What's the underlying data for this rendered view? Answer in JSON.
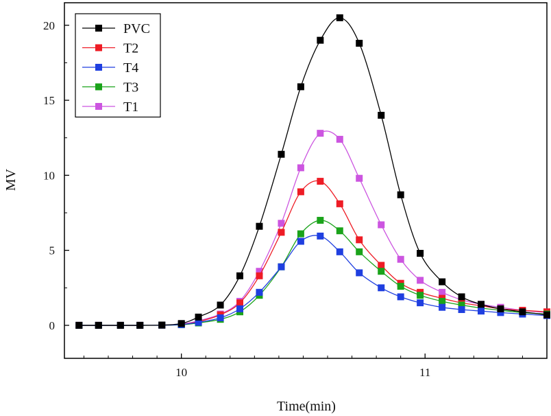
{
  "chart_data": {
    "type": "line",
    "title": "",
    "xlabel": "Time(min)",
    "ylabel": "MV",
    "xlim": [
      9.52,
      11.5
    ],
    "ylim": [
      -2.2,
      21.5
    ],
    "xticks": [
      10,
      11
    ],
    "yticks": [
      0,
      5,
      10,
      15,
      20
    ],
    "grid": false,
    "legend_position": "top-left",
    "series": [
      {
        "name": "PVC",
        "color": "#000000",
        "x": [
          9.58,
          9.66,
          9.75,
          9.83,
          9.92,
          10.0,
          10.07,
          10.16,
          10.24,
          10.32,
          10.41,
          10.49,
          10.57,
          10.65,
          10.73,
          10.82,
          10.9,
          10.98,
          11.07,
          11.15,
          11.23,
          11.31,
          11.4,
          11.5
        ],
        "y": [
          0.0,
          0.0,
          0.0,
          0.0,
          0.02,
          0.12,
          0.55,
          1.35,
          3.3,
          6.6,
          11.4,
          15.9,
          19.0,
          20.5,
          18.8,
          14.0,
          8.7,
          4.8,
          2.9,
          1.9,
          1.4,
          1.1,
          0.9,
          0.7
        ]
      },
      {
        "name": "T2",
        "color": "#ee1c25",
        "x": [
          9.58,
          9.66,
          9.75,
          9.83,
          9.92,
          10.0,
          10.07,
          10.16,
          10.24,
          10.32,
          10.41,
          10.49,
          10.57,
          10.65,
          10.73,
          10.82,
          10.9,
          10.98,
          11.07,
          11.15,
          11.23,
          11.31,
          11.4,
          11.5
        ],
        "y": [
          0.0,
          0.0,
          0.0,
          0.0,
          0.01,
          0.06,
          0.25,
          0.7,
          1.5,
          3.3,
          6.2,
          8.9,
          9.6,
          8.1,
          5.7,
          4.0,
          2.8,
          2.2,
          1.8,
          1.5,
          1.3,
          1.1,
          1.0,
          0.9
        ]
      },
      {
        "name": "T4",
        "color": "#1f3fe0",
        "x": [
          9.58,
          9.66,
          9.75,
          9.83,
          9.92,
          10.0,
          10.07,
          10.16,
          10.24,
          10.32,
          10.41,
          10.49,
          10.57,
          10.65,
          10.73,
          10.82,
          10.9,
          10.98,
          11.07,
          11.15,
          11.23,
          11.31,
          11.4,
          11.5
        ],
        "y": [
          0.0,
          0.0,
          0.0,
          0.0,
          0.01,
          0.05,
          0.2,
          0.5,
          1.1,
          2.2,
          3.9,
          5.6,
          5.95,
          4.9,
          3.5,
          2.5,
          1.9,
          1.5,
          1.2,
          1.05,
          0.95,
          0.85,
          0.75,
          0.65
        ]
      },
      {
        "name": "T3",
        "color": "#1aa31a",
        "x": [
          9.58,
          9.66,
          9.75,
          9.83,
          9.92,
          10.0,
          10.07,
          10.16,
          10.24,
          10.32,
          10.41,
          10.49,
          10.57,
          10.65,
          10.73,
          10.82,
          10.9,
          10.98,
          11.07,
          11.15,
          11.23,
          11.31,
          11.4,
          11.5
        ],
        "y": [
          0.0,
          0.0,
          0.0,
          0.0,
          0.01,
          0.04,
          0.16,
          0.4,
          0.9,
          2.0,
          3.9,
          6.1,
          7.0,
          6.3,
          4.9,
          3.6,
          2.6,
          2.0,
          1.6,
          1.35,
          1.15,
          1.0,
          0.85,
          0.75
        ]
      },
      {
        "name": "T1",
        "color": "#cc55e0",
        "x": [
          9.58,
          9.66,
          9.75,
          9.83,
          9.92,
          10.0,
          10.07,
          10.16,
          10.24,
          10.32,
          10.41,
          10.49,
          10.57,
          10.65,
          10.73,
          10.82,
          10.9,
          10.98,
          11.07,
          11.15,
          11.23,
          11.31,
          11.4,
          11.5
        ],
        "y": [
          0.0,
          0.0,
          0.0,
          0.0,
          0.01,
          0.08,
          0.3,
          0.75,
          1.6,
          3.6,
          6.8,
          10.5,
          12.8,
          12.4,
          9.8,
          6.7,
          4.4,
          3.0,
          2.2,
          1.7,
          1.4,
          1.2,
          1.0,
          0.85
        ]
      }
    ]
  }
}
